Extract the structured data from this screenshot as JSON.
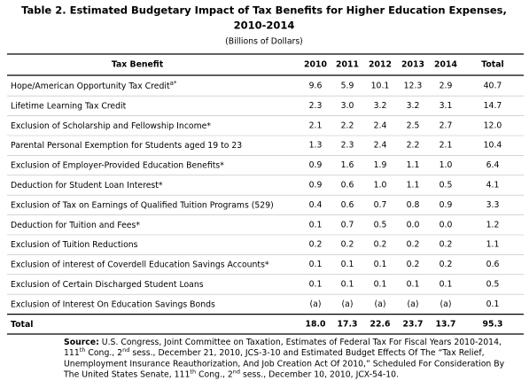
{
  "header": {
    "title_lines": [
      "Table 2. Estimated Budgetary Impact of Tax Benefits for Higher Education Expenses,",
      "2010-2014"
    ],
    "subtitle": "(Billions of Dollars)"
  },
  "table": {
    "columns": [
      "Tax Benefit",
      "2010",
      "2011",
      "2012",
      "2013",
      "2014",
      "Total"
    ],
    "rows": [
      [
        {
          "text": "Hope/American Opportunity Tax Credit",
          "sup": "a*"
        },
        "9.6",
        "5.9",
        "10.1",
        "12.3",
        "2.9",
        "40.7"
      ],
      [
        {
          "text": "Lifetime Learning Tax Credit"
        },
        "2.3",
        "3.0",
        "3.2",
        "3.2",
        "3.1",
        "14.7"
      ],
      [
        {
          "text": "Exclusion of Scholarship and Fellowship Income*"
        },
        "2.1",
        "2.2",
        "2.4",
        "2.5",
        "2.7",
        "12.0"
      ],
      [
        {
          "text": "Parental Personal Exemption for Students aged 19 to 23"
        },
        "1.3",
        "2.3",
        "2.4",
        "2.2",
        "2.1",
        "10.4"
      ],
      [
        {
          "text": "Exclusion of Employer-Provided Education Benefits*"
        },
        "0.9",
        "1.6",
        "1.9",
        "1.1",
        "1.0",
        "6.4"
      ],
      [
        {
          "text": "Deduction for Student Loan Interest*"
        },
        "0.9",
        "0.6",
        "1.0",
        "1.1",
        "0.5",
        "4.1"
      ],
      [
        {
          "text": "Exclusion of Tax on Earnings of Qualified Tuition Programs (529)"
        },
        "0.4",
        "0.6",
        "0.7",
        "0.8",
        "0.9",
        "3.3"
      ],
      [
        {
          "text": "Deduction for Tuition and Fees*"
        },
        "0.1",
        "0.7",
        "0.5",
        "0.0",
        "0.0",
        "1.2"
      ],
      [
        {
          "text": "Exclusion of Tuition Reductions"
        },
        "0.2",
        "0.2",
        "0.2",
        "0.2",
        "0.2",
        "1.1"
      ],
      [
        {
          "text": "Exclusion of interest of Coverdell Education Savings Accounts*"
        },
        "0.1",
        "0.1",
        "0.1",
        "0.2",
        "0.2",
        "0.6"
      ],
      [
        {
          "text": "Exclusion of Certain Discharged Student Loans"
        },
        "0.1",
        "0.1",
        "0.1",
        "0.1",
        "0.1",
        "0.5"
      ],
      [
        {
          "text": "Exclusion of Interest On Education Savings Bonds"
        },
        "(a)",
        "(a)",
        "(a)",
        "(a)",
        "(a)",
        "0.1"
      ]
    ],
    "total": [
      {
        "text": "Total"
      },
      "18.0",
      "17.3",
      "22.6",
      "23.7",
      "13.7",
      "95.3"
    ]
  },
  "source": {
    "label": "Source:",
    "lines": [
      [
        " U.S. Congress, Joint Committee on Taxation, Estimates of Federal Tax For Fiscal Years 2010-2014,"
      ],
      [
        "111",
        {
          "sup": "th"
        },
        " Cong., 2",
        {
          "sup": "nd"
        },
        " sess., December 21, 2010, JCS-3-10 and Estimated Budget Effects Of The “Tax Relief,"
      ],
      [
        "Unemployment Insurance Reauthorization, And Job Creation Act Of 2010,” Scheduled For Consideration By"
      ],
      [
        "The United States Senate, 111",
        {
          "sup": "th"
        },
        " Cong., 2",
        {
          "sup": "nd"
        },
        " sess., December 10, 2010, JCX-54-10."
      ]
    ]
  }
}
